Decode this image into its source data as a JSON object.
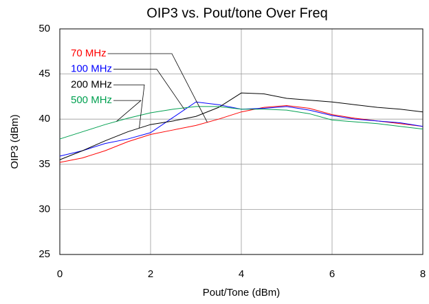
{
  "chart_data": {
    "type": "line",
    "title": "OIP3 vs. Pout/tone Over Freq",
    "x_label": "Pout/Tone (dBm)",
    "y_label": "OIP3 (dBm)",
    "x": [
      0,
      0.5,
      1,
      1.5,
      2,
      2.5,
      3,
      3.5,
      4,
      4.5,
      5,
      5.5,
      6,
      6.5,
      7,
      7.5,
      8
    ],
    "series": [
      {
        "name": "70 MHz",
        "color": "#ff0000",
        "values": [
          35.2,
          35.7,
          36.5,
          37.5,
          38.3,
          38.8,
          39.3,
          40.0,
          40.8,
          41.3,
          41.5,
          41.2,
          40.5,
          40.1,
          39.8,
          39.5,
          39.2
        ]
      },
      {
        "name": "100 MHz",
        "color": "#0000ff",
        "values": [
          35.9,
          36.5,
          37.3,
          37.8,
          38.5,
          40.2,
          41.9,
          41.6,
          41.1,
          41.2,
          41.4,
          41.0,
          40.4,
          40.0,
          39.8,
          39.6,
          39.2
        ]
      },
      {
        "name": "200 MHz",
        "color": "#000000",
        "values": [
          35.5,
          36.5,
          37.6,
          38.6,
          39.4,
          39.8,
          40.3,
          41.3,
          42.9,
          42.8,
          42.3,
          42.1,
          41.9,
          41.6,
          41.3,
          41.1,
          40.8
        ]
      },
      {
        "name": "500 MHz",
        "color": "#00a050",
        "values": [
          37.8,
          38.6,
          39.4,
          40.1,
          40.7,
          41.1,
          41.4,
          41.4,
          41.1,
          41.1,
          41.0,
          40.6,
          39.9,
          39.7,
          39.5,
          39.2,
          38.9
        ]
      }
    ],
    "xlim": [
      0,
      8
    ],
    "xticks": [
      0,
      2,
      4,
      6,
      8
    ],
    "ylim": [
      25,
      50
    ],
    "yticks": [
      25,
      30,
      35,
      40,
      45,
      50
    ],
    "grid": true
  }
}
